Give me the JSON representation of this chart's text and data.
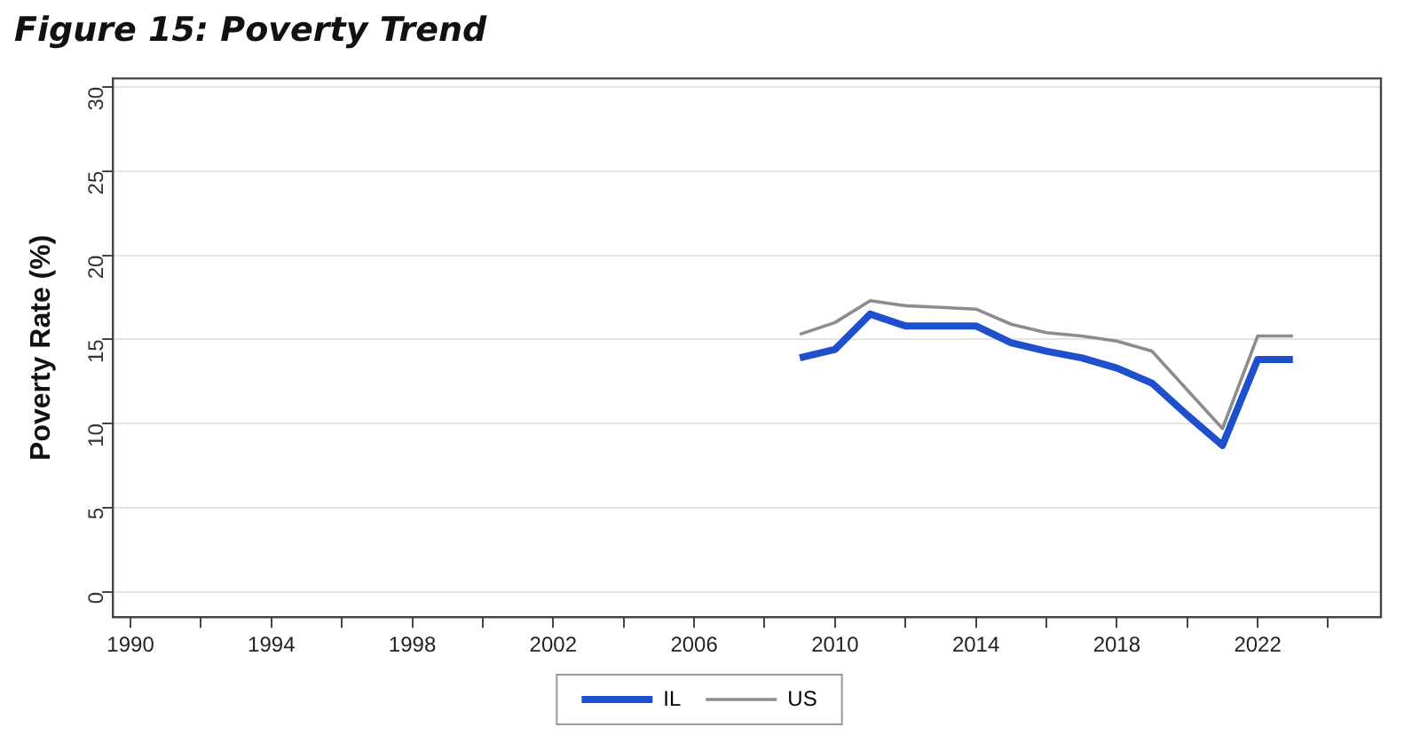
{
  "chart_data": {
    "type": "line",
    "title": "Figure 15: Poverty Trend",
    "ylabel": "Poverty Rate (%)",
    "x": [
      2009,
      2010,
      2011,
      2012,
      2013,
      2014,
      2015,
      2016,
      2017,
      2018,
      2019,
      2020,
      2021,
      2022,
      2023
    ],
    "series": [
      {
        "name": "IL",
        "color": "#1f4fcc",
        "values": [
          13.9,
          14.4,
          16.5,
          15.8,
          15.8,
          15.8,
          14.8,
          14.3,
          13.9,
          13.3,
          12.4,
          10.5,
          8.7,
          13.8,
          13.8
        ]
      },
      {
        "name": "US",
        "color": "#8c8c8c",
        "values": [
          15.3,
          16.0,
          17.3,
          17.0,
          16.9,
          16.8,
          15.9,
          15.4,
          15.2,
          14.9,
          14.3,
          12.0,
          9.7,
          15.2,
          15.2
        ]
      }
    ],
    "xlim": [
      1989.5,
      2025.5
    ],
    "xticks": [
      1990,
      {
        "value": 1992,
        "label": null
      },
      1994,
      {
        "value": 1996,
        "label": null
      },
      1998,
      {
        "value": 2000,
        "label": null
      },
      2002,
      {
        "value": 2004,
        "label": null
      },
      2006,
      {
        "value": 2008,
        "label": null
      },
      2010,
      {
        "value": 2012,
        "label": null
      },
      2014,
      {
        "value": 2016,
        "label": null
      },
      2018,
      {
        "value": 2020,
        "label": null
      },
      2022,
      {
        "value": 2024,
        "label": null
      }
    ],
    "ylim": [
      -1.5,
      30.5
    ],
    "yticks": [
      0,
      5,
      10,
      15,
      20,
      25,
      30
    ],
    "grid": "y",
    "legend": "bottom",
    "marker": "none",
    "line_style": "solid"
  }
}
